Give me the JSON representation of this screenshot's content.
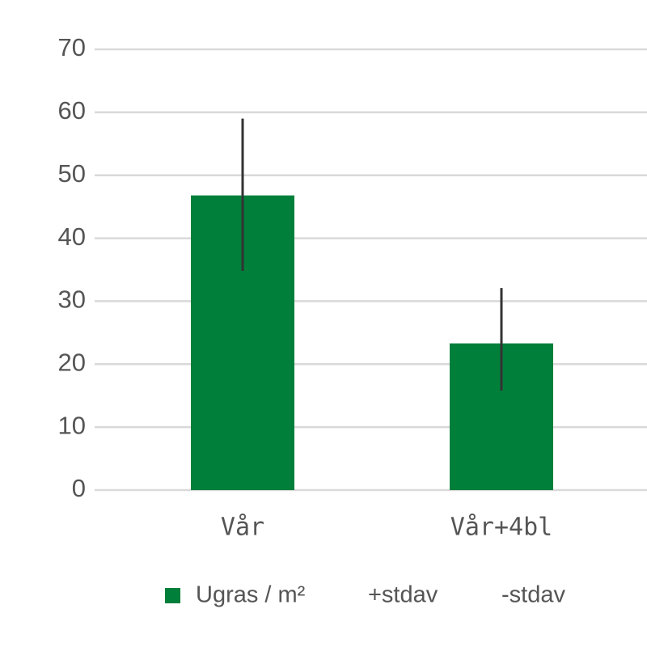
{
  "chart_data": {
    "type": "bar",
    "categories": [
      "Vår",
      "Vår+4bl"
    ],
    "series": [
      {
        "name": "Ugras / m²",
        "color": "#007f3b",
        "values": [
          46.8,
          23.3
        ]
      },
      {
        "name": "+stdav",
        "color": "#333333",
        "values": [
          12.2,
          8.8
        ]
      },
      {
        "name": "-stdav",
        "color": "#333333",
        "values": [
          12,
          7.5
        ]
      }
    ],
    "ylim": [
      0,
      70
    ],
    "yticks": [
      0,
      10,
      20,
      30,
      40,
      50,
      60,
      70
    ],
    "grid": true
  }
}
